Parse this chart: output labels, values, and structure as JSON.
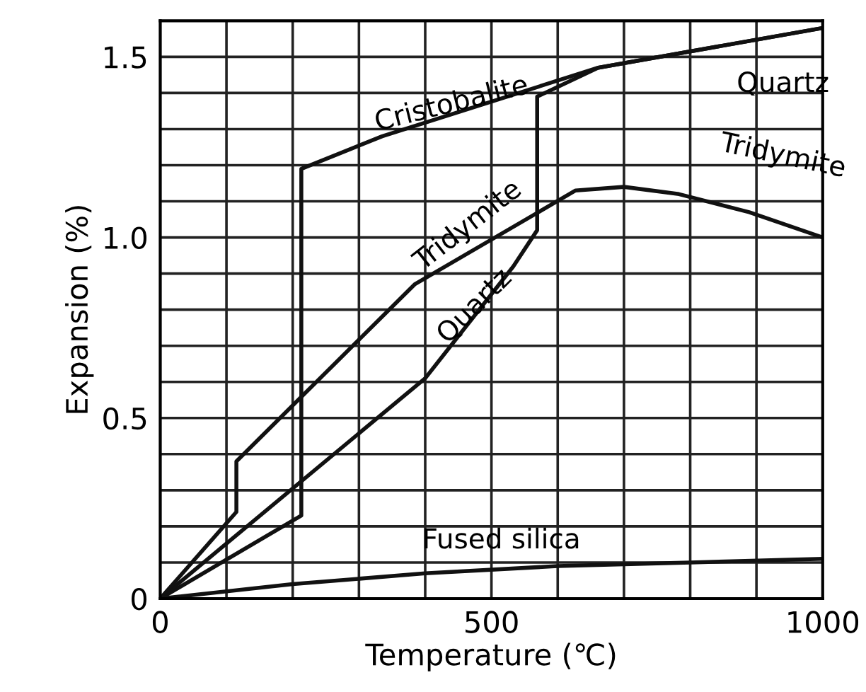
{
  "chart_data": {
    "type": "line",
    "xlabel": "Temperature (℃)",
    "ylabel": "Expansion (%)",
    "xlim": [
      0,
      1000
    ],
    "ylim": [
      0,
      1.6
    ],
    "xticks": [
      0,
      {
        "value": 100,
        "label": null
      },
      {
        "value": 200,
        "label": null
      },
      {
        "value": 300,
        "label": null
      },
      {
        "value": 400,
        "label": null
      },
      500,
      {
        "value": 600,
        "label": null
      },
      {
        "value": 700,
        "label": null
      },
      {
        "value": 800,
        "label": null
      },
      {
        "value": 900,
        "label": null
      },
      1000
    ],
    "yticks": [
      0,
      {
        "value": 0.1,
        "label": null
      },
      {
        "value": 0.2,
        "label": null
      },
      {
        "value": 0.3,
        "label": null
      },
      {
        "value": 0.4,
        "label": null
      },
      0.5,
      {
        "value": 0.6,
        "label": null
      },
      {
        "value": 0.7,
        "label": null
      },
      {
        "value": 0.8,
        "label": null
      },
      {
        "value": 0.9,
        "label": null
      },
      {
        "value": 1.0,
        "label": "1.0"
      },
      {
        "value": 1.1,
        "label": null
      },
      {
        "value": 1.2,
        "label": null
      },
      {
        "value": 1.3,
        "label": null
      },
      {
        "value": 1.4,
        "label": null
      },
      1.5
    ],
    "grid": true,
    "marker": "none",
    "line_style": "solid",
    "series": [
      {
        "color": "#111111",
        "x": [
          0,
          213,
          213,
          335,
          661,
          1000
        ],
        "values": [
          0,
          0.23,
          1.19,
          1.28,
          1.47,
          1.58
        ]
      },
      {
        "color": "#111111",
        "x": [
          0,
          400,
          533,
          569,
          569,
          661,
          1000
        ],
        "values": [
          0,
          0.61,
          0.92,
          1.02,
          1.39,
          1.47,
          1.58
        ]
      },
      {
        "color": "#111111",
        "x": [
          0,
          115,
          115,
          384,
          627,
          700,
          783,
          889,
          1000
        ],
        "values": [
          0,
          0.24,
          0.38,
          0.87,
          1.13,
          1.14,
          1.12,
          1.07,
          1.0
        ]
      },
      {
        "color": "#111111",
        "x": [
          0,
          200,
          400,
          600,
          800,
          1000
        ],
        "values": [
          0,
          0.04,
          0.07,
          0.09,
          0.1,
          0.11
        ]
      }
    ],
    "annotations": [
      "Cristobalite",
      "Quartz",
      "Tridymite",
      "Tridymite",
      "Quartz",
      "Fused silica"
    ]
  }
}
